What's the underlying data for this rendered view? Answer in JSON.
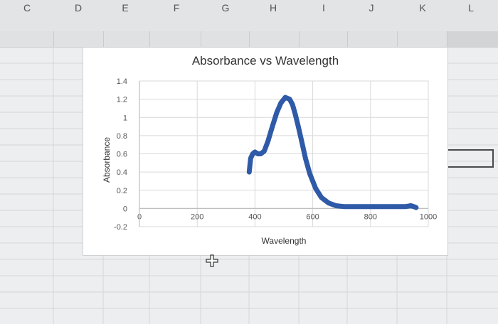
{
  "spreadsheet": {
    "columns": [
      "C",
      "D",
      "E",
      "F",
      "G",
      "H",
      "I",
      "J",
      "K",
      "L"
    ]
  },
  "chart_data": {
    "type": "line",
    "title": "Absorbance vs Wavelength",
    "xlabel": "Wavelength",
    "ylabel": "Absorbance",
    "xlim": [
      0,
      1000
    ],
    "ylim": [
      -0.2,
      1.4
    ],
    "xticks": [
      0,
      200,
      400,
      600,
      800,
      1000
    ],
    "yticks": [
      -0.2,
      0,
      0.2,
      0.4,
      0.6,
      0.8,
      1,
      1.2,
      1.4
    ],
    "grid": true,
    "series_color": "#2f5aa8",
    "series": [
      {
        "x": [
          380,
          385,
          392,
          400,
          410,
          420,
          432,
          445,
          460,
          475,
          490,
          505,
          520,
          530,
          540,
          550,
          560,
          575,
          590,
          610,
          630,
          655,
          680,
          710,
          740,
          770,
          800,
          830,
          860,
          890,
          920,
          940,
          950,
          958
        ],
        "y": [
          0.4,
          0.55,
          0.6,
          0.62,
          0.6,
          0.6,
          0.63,
          0.74,
          0.9,
          1.05,
          1.16,
          1.22,
          1.2,
          1.14,
          1.03,
          0.9,
          0.76,
          0.55,
          0.38,
          0.22,
          0.12,
          0.06,
          0.03,
          0.02,
          0.02,
          0.02,
          0.02,
          0.02,
          0.02,
          0.02,
          0.02,
          0.03,
          0.02,
          0.01
        ]
      }
    ]
  }
}
